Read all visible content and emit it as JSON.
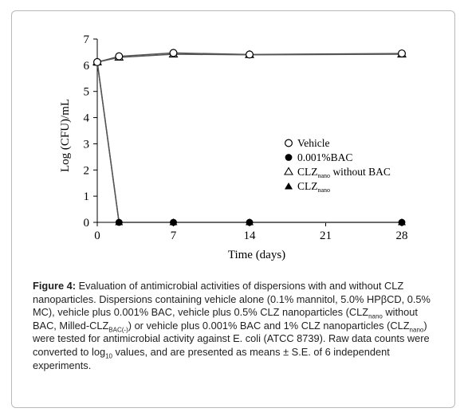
{
  "chart_data": {
    "type": "line",
    "xlabel": "Time (days)",
    "ylabel": "Log (CFU)/mL",
    "xlim": [
      0,
      28
    ],
    "ylim": [
      0,
      7
    ],
    "xticks": [
      "0",
      "7",
      "14",
      "21",
      "28"
    ],
    "yticks": [
      "0",
      "1",
      "2",
      "3",
      "4",
      "5",
      "6",
      "7"
    ],
    "grid": false,
    "legend_position": "right",
    "series": [
      {
        "name": "Vehicle",
        "marker": "circle-open",
        "x": [
          0,
          2,
          7,
          14,
          28
        ],
        "y": [
          6.12,
          6.34,
          6.47,
          6.41,
          6.45
        ]
      },
      {
        "name": "0.001%BAC",
        "marker": "circle-filled",
        "x": [
          0,
          2,
          7,
          14,
          28
        ],
        "y": [
          6.12,
          0.0,
          0.0,
          0.0,
          0.0
        ]
      },
      {
        "name": "CLZnano without BAC",
        "marker": "triangle-open",
        "x": [
          0,
          2,
          7,
          14,
          28
        ],
        "y": [
          6.12,
          6.3,
          6.42,
          6.4,
          6.42
        ]
      },
      {
        "name": "CLZnano",
        "marker": "triangle-filled",
        "x": [
          0,
          2,
          7,
          14,
          28
        ],
        "y": [
          6.12,
          0.0,
          0.0,
          0.0,
          0.0
        ]
      }
    ],
    "legend": {
      "vehicle": "Vehicle",
      "bac": "0.001%BAC",
      "clz_nobac_main": "CLZ",
      "clz_nobac_sub": "nano",
      "clz_nobac_rest": " without BAC",
      "clz_main": "CLZ",
      "clz_sub": "nano"
    }
  },
  "caption": {
    "label": "Figure 4:",
    "s1": " Evaluation of antimicrobial activities of dispersions with and without CLZ nanoparticles. Dispersions containing vehicle alone (0.1% mannitol, 5.0% HPβCD, 0.5% MC), vehicle plus 0.001% BAC, vehicle plus 0.5% CLZ nanoparticles (CLZ",
    "sub1": "nano",
    "s2": " without BAC, Milled-CLZ",
    "sub2": "BAC(-)",
    "s3": ") or vehicle plus 0.001% BAC and 1% CLZ nanoparticles (CLZ",
    "sub3": "nano",
    "s4": ") were tested for antimicrobial activity against E. coli (ATCC 8739). Raw data counts were converted to log",
    "sub4": "10",
    "s5": " values, and are presented as means ± S.E. of 6 independent experiments."
  }
}
